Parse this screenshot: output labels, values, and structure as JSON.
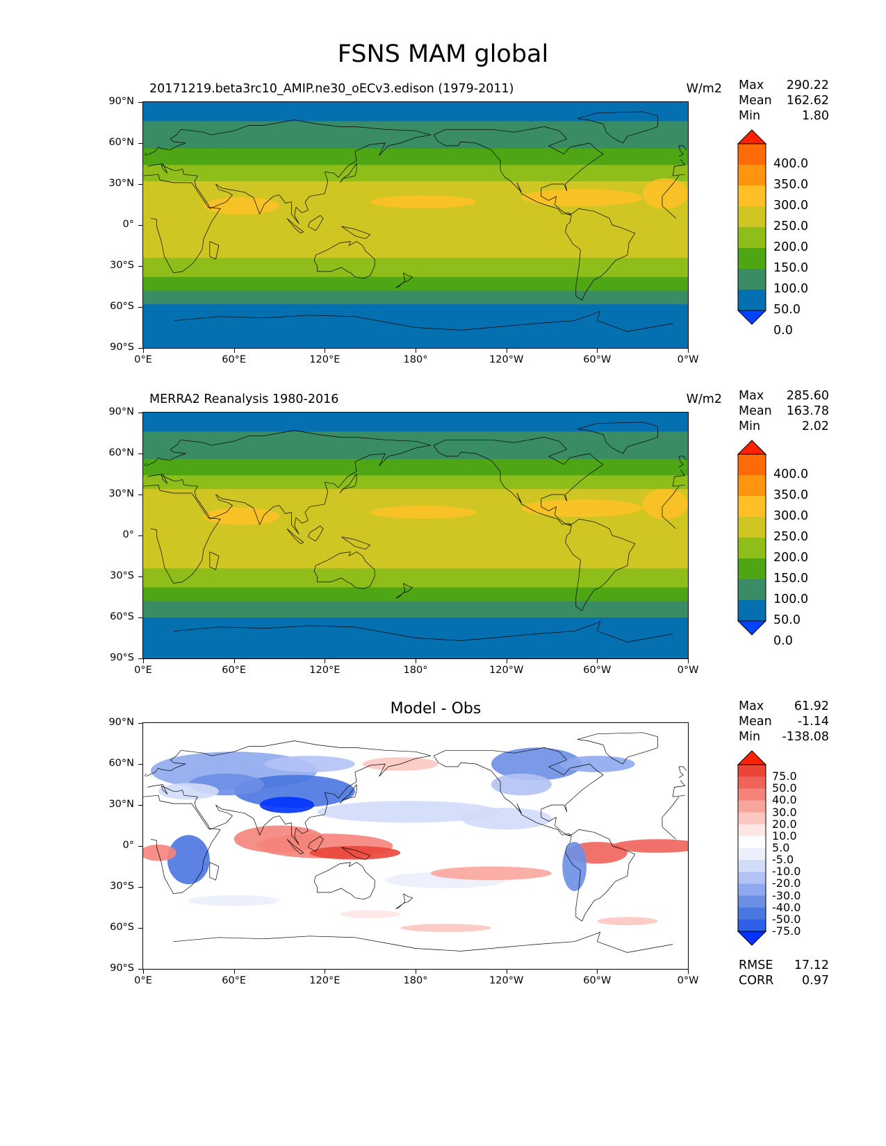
{
  "figure": {
    "title": "FSNS MAM global"
  },
  "axis_ticks": {
    "y": [
      "90°N",
      "60°N",
      "30°N",
      "0°",
      "30°S",
      "60°S",
      "90°S"
    ],
    "x": [
      "0°E",
      "60°E",
      "120°E",
      "180°",
      "120°W",
      "60°W",
      "0°W"
    ]
  },
  "panels": [
    {
      "id": "model",
      "left_title": "20171219.beta3rc10_AMIP.ne30_oECv3.edison (1979-2011)",
      "center_title": "",
      "units": "W/m2",
      "stats": [
        {
          "label": "Max",
          "value": "290.22"
        },
        {
          "label": "Mean",
          "value": "162.62"
        },
        {
          "label": "Min",
          "value": "1.80"
        }
      ],
      "colorbar": {
        "labels": [
          "400.0",
          "350.0",
          "300.0",
          "250.0",
          "200.0",
          "150.0",
          "100.0",
          "50.0",
          "0.0"
        ],
        "colors": [
          "#0044ff",
          "#0570b0",
          "#398c63",
          "#4fa615",
          "#8fbe1a",
          "#cfc624",
          "#ffbf26",
          "#ff9410",
          "#fe6a07",
          "#ff2200"
        ]
      }
    },
    {
      "id": "obs",
      "left_title": "MERRA2 Reanalysis 1980-2016",
      "center_title": "",
      "units": "W/m2",
      "stats": [
        {
          "label": "Max",
          "value": "285.60"
        },
        {
          "label": "Mean",
          "value": "163.78"
        },
        {
          "label": "Min",
          "value": "2.02"
        }
      ],
      "colorbar": {
        "labels": [
          "400.0",
          "350.0",
          "300.0",
          "250.0",
          "200.0",
          "150.0",
          "100.0",
          "50.0",
          "0.0"
        ],
        "colors": [
          "#0044ff",
          "#0570b0",
          "#398c63",
          "#4fa615",
          "#8fbe1a",
          "#cfc624",
          "#ffbf26",
          "#ff9410",
          "#fe6a07",
          "#ff2200"
        ]
      }
    },
    {
      "id": "diff",
      "left_title": "",
      "center_title": "Model - Obs",
      "units": "",
      "stats": [
        {
          "label": "Max",
          "value": "61.92"
        },
        {
          "label": "Mean",
          "value": "-1.14"
        },
        {
          "label": "Min",
          "value": "-138.08"
        }
      ],
      "bottom_stats": [
        {
          "label": "RMSE",
          "value": "17.12"
        },
        {
          "label": "CORR",
          "value": "0.97"
        }
      ],
      "colorbar": {
        "labels": [
          "75.0",
          "50.0",
          "40.0",
          "30.0",
          "20.0",
          "10.0",
          "5.0",
          "-5.0",
          "-10.0",
          "-20.0",
          "-30.0",
          "-40.0",
          "-50.0",
          "-75.0"
        ],
        "colors": [
          "#0033ff",
          "#2f5fe6",
          "#4a76e0",
          "#6c8fe6",
          "#8fa8ee",
          "#b2c2f4",
          "#d2dcf8",
          "#ebf0fc",
          "#ffffff",
          "#fde7e4",
          "#fcc7c0",
          "#f9a59b",
          "#f5837a",
          "#f0635a",
          "#ea4638",
          "#ff2200"
        ]
      }
    }
  ],
  "chart_data": [
    {
      "type": "heatmap",
      "title": "20171219.beta3rc10_AMIP.ne30_oECv3.edison (1979-2011)",
      "units": "W/m2",
      "xlim": [
        0,
        360
      ],
      "ylim": [
        -90,
        90
      ],
      "stats": {
        "max": 290.22,
        "mean": 162.62,
        "min": 1.8
      },
      "levels": [
        0,
        50,
        100,
        150,
        200,
        250,
        300,
        350,
        400
      ],
      "zonal_mean_profile": {
        "lat": [
          -90,
          -75,
          -60,
          -50,
          -45,
          -40,
          -30,
          -20,
          -10,
          0,
          10,
          20,
          30,
          40,
          45,
          50,
          60,
          70,
          80,
          90
        ],
        "value": [
          20,
          30,
          45,
          90,
          110,
          140,
          180,
          210,
          220,
          220,
          225,
          230,
          210,
          170,
          140,
          120,
          90,
          60,
          40,
          20
        ]
      }
    },
    {
      "type": "heatmap",
      "title": "MERRA2 Reanalysis 1980-2016",
      "units": "W/m2",
      "xlim": [
        0,
        360
      ],
      "ylim": [
        -90,
        90
      ],
      "stats": {
        "max": 285.6,
        "mean": 163.78,
        "min": 2.02
      },
      "levels": [
        0,
        50,
        100,
        150,
        200,
        250,
        300,
        350,
        400
      ],
      "zonal_mean_profile": {
        "lat": [
          -90,
          -75,
          -60,
          -50,
          -45,
          -40,
          -30,
          -20,
          -10,
          0,
          10,
          20,
          30,
          40,
          45,
          50,
          60,
          70,
          80,
          90
        ],
        "value": [
          20,
          30,
          45,
          95,
          115,
          145,
          185,
          210,
          215,
          215,
          220,
          235,
          215,
          175,
          145,
          120,
          90,
          60,
          40,
          20
        ]
      }
    },
    {
      "type": "heatmap",
      "title": "Model - Obs",
      "xlim": [
        0,
        360
      ],
      "ylim": [
        -90,
        90
      ],
      "stats": {
        "max": 61.92,
        "mean": -1.14,
        "min": -138.08,
        "rmse": 17.12,
        "corr": 0.97
      },
      "levels": [
        -75,
        -50,
        -40,
        -30,
        -20,
        -10,
        -5,
        5,
        10,
        20,
        30,
        40,
        50,
        75
      ]
    }
  ]
}
